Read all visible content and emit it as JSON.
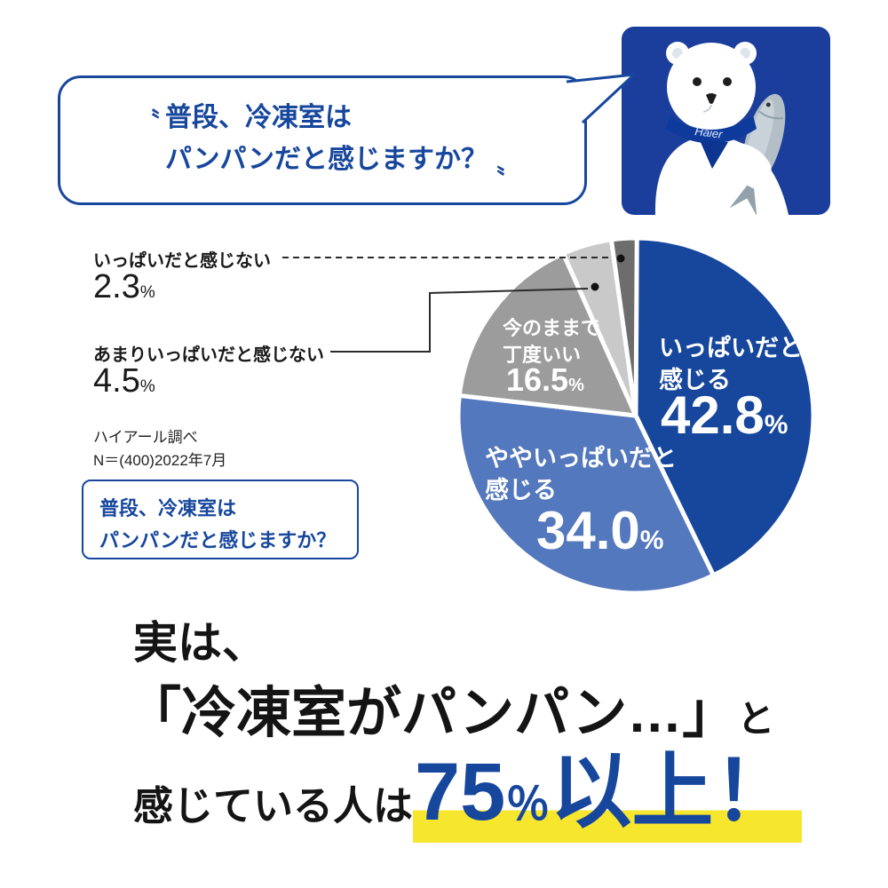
{
  "question_bubble": {
    "quote_open": "〝",
    "line1": "普段、冷凍室は",
    "line2": "パンパンだと感じますか？",
    "quote_close": "〟"
  },
  "mascot": {
    "brand": "Haier",
    "bg_color": "#1b3e9d"
  },
  "chart_data": {
    "type": "pie",
    "title_lines": [
      "普段、冷凍室は",
      "パンパンだと感じますか？"
    ],
    "source": {
      "line1": "ハイアール調べ",
      "line2": "N＝(400)2022年7月"
    },
    "unit": "%",
    "start_angle_deg": -90,
    "direction": "clockwise",
    "slices": [
      {
        "label": "いっぱいだと感じる",
        "label_lines": [
          "いっぱいだと",
          "感じる"
        ],
        "value": "42.8",
        "color": "#17479d"
      },
      {
        "label": "ややいっぱいだと感じる",
        "label_lines": [
          "ややいっぱいだと",
          "感じる"
        ],
        "value": "34.0",
        "color": "#5478bd"
      },
      {
        "label": "今のままで丁度いい",
        "label_lines": [
          "今のままで",
          "丁度いい"
        ],
        "value": "16.5",
        "color": "#9c9c9c"
      },
      {
        "label": "あまりいっぱいだと感じない",
        "label_lines": [
          "あまりいっぱいだと感じない"
        ],
        "value": "4.5",
        "color": "#c9c9c9"
      },
      {
        "label": "いっぱいだと感じない",
        "label_lines": [
          "いっぱいだと感じない"
        ],
        "value": "2.3",
        "color": "#6d6d6d"
      }
    ]
  },
  "conclusion": {
    "intro": "実は、",
    "quote": "「冷凍室がパンパン…」",
    "suffix_to": "と",
    "line_prefix": "感じている人は",
    "big_number": "75",
    "big_unit": "％",
    "big_suffix": "以上！",
    "accent_color": "#17479d",
    "highlight_color": "#f7e62e"
  }
}
